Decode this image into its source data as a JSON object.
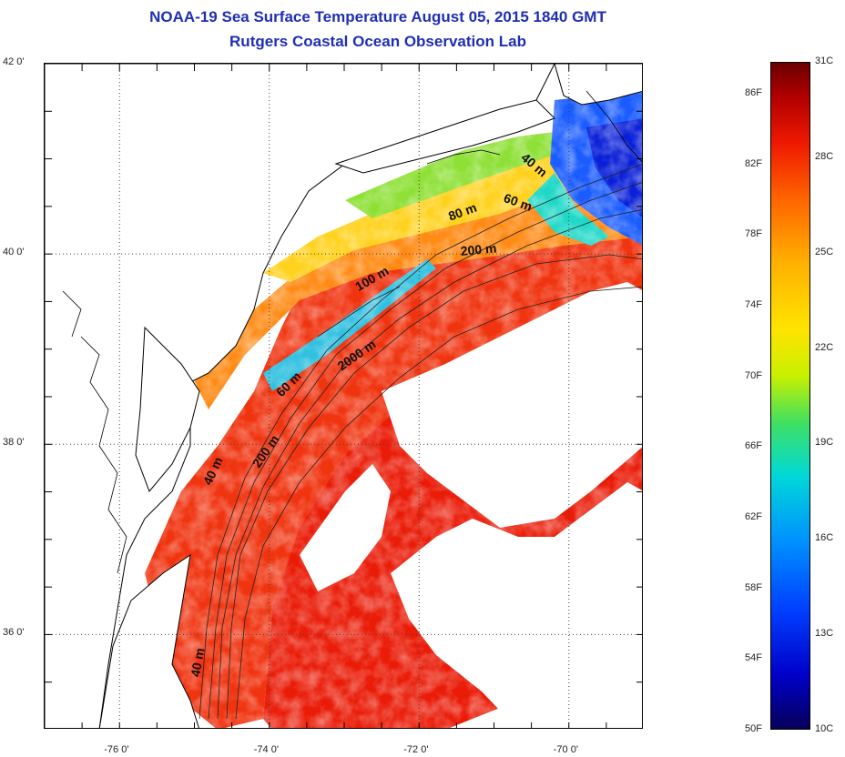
{
  "header": {
    "title": "NOAA-19 Sea Surface Temperature August 05, 2015 1840 GMT",
    "subtitle": "Rutgers Coastal Ocean Observation Lab"
  },
  "map": {
    "lat_range": [
      35,
      42
    ],
    "lon_range": [
      -77,
      -69
    ],
    "lat_ticks": [
      {
        "value": 42,
        "label": "42 0'"
      },
      {
        "value": 40,
        "label": "40 0'"
      },
      {
        "value": 38,
        "label": "38 0'"
      },
      {
        "value": 36,
        "label": "36 0'"
      }
    ],
    "lon_ticks": [
      {
        "value": -76,
        "label": "-76 0'"
      },
      {
        "value": -74,
        "label": "-74 0'"
      },
      {
        "value": -72,
        "label": "-72 0'"
      },
      {
        "value": -70,
        "label": "-70 0'"
      }
    ],
    "contour_labels": [
      {
        "text": "40 m",
        "lon": -70.5,
        "lat": 40.9,
        "angle": 40
      },
      {
        "text": "60 m",
        "lon": -70.7,
        "lat": 40.5,
        "angle": 20
      },
      {
        "text": "80 m",
        "lon": -71.4,
        "lat": 40.4,
        "angle": -20
      },
      {
        "text": "200 m",
        "lon": -71.2,
        "lat": 40.0,
        "angle": -5
      },
      {
        "text": "100 m",
        "lon": -72.6,
        "lat": 39.7,
        "angle": -30
      },
      {
        "text": "2000 m",
        "lon": -72.8,
        "lat": 38.9,
        "angle": -35
      },
      {
        "text": "60 m",
        "lon": -73.7,
        "lat": 38.6,
        "angle": -45
      },
      {
        "text": "200 m",
        "lon": -74.0,
        "lat": 37.9,
        "angle": -55
      },
      {
        "text": "40 m",
        "lon": -74.7,
        "lat": 37.7,
        "angle": -65
      },
      {
        "text": "40 m",
        "lon": -74.9,
        "lat": 35.7,
        "angle": -80
      }
    ],
    "colors": {
      "land": "#ffffff",
      "coastline": "#000000",
      "cloud": "#ffffff"
    }
  },
  "colorbar": {
    "min_c": 10,
    "max_c": 31,
    "celsius_labels": [
      {
        "value": 31,
        "label": "31C"
      },
      {
        "value": 28,
        "label": "28C"
      },
      {
        "value": 25,
        "label": "25C"
      },
      {
        "value": 22,
        "label": "22C"
      },
      {
        "value": 19,
        "label": "19C"
      },
      {
        "value": 16,
        "label": "16C"
      },
      {
        "value": 13,
        "label": "13C"
      },
      {
        "value": 10,
        "label": "10C"
      }
    ],
    "fahrenheit_labels": [
      {
        "value": 86,
        "label": "86F"
      },
      {
        "value": 82,
        "label": "82F"
      },
      {
        "value": 78,
        "label": "78F"
      },
      {
        "value": 74,
        "label": "74F"
      },
      {
        "value": 70,
        "label": "70F"
      },
      {
        "value": 66,
        "label": "66F"
      },
      {
        "value": 62,
        "label": "62F"
      },
      {
        "value": 58,
        "label": "58F"
      },
      {
        "value": 54,
        "label": "54F"
      },
      {
        "value": 50,
        "label": "50F"
      }
    ]
  }
}
